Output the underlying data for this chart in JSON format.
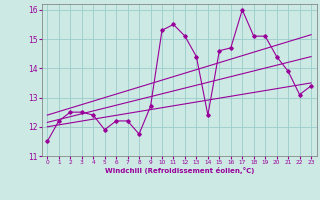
{
  "title": "",
  "xlabel": "Windchill (Refroidissement éolien,°C)",
  "background_color": "#cce9e4",
  "line_color": "#990099",
  "grid_color": "#99cccc",
  "xlim": [
    -0.5,
    23.5
  ],
  "ylim": [
    11,
    16.2
  ],
  "yticks": [
    11,
    12,
    13,
    14,
    15,
    16
  ],
  "xticks": [
    0,
    1,
    2,
    3,
    4,
    5,
    6,
    7,
    8,
    9,
    10,
    11,
    12,
    13,
    14,
    15,
    16,
    17,
    18,
    19,
    20,
    21,
    22,
    23
  ],
  "series1_y": [
    11.5,
    12.2,
    12.5,
    12.5,
    12.4,
    11.9,
    12.2,
    12.2,
    11.75,
    12.7,
    15.3,
    15.5,
    15.1,
    14.4,
    12.4,
    14.6,
    14.7,
    16.0,
    15.1,
    15.1,
    14.4,
    13.9,
    13.1,
    13.4
  ],
  "trend1": [
    12.0,
    13.5
  ],
  "trend2": [
    12.15,
    14.4
  ],
  "trend3": [
    12.4,
    15.15
  ]
}
